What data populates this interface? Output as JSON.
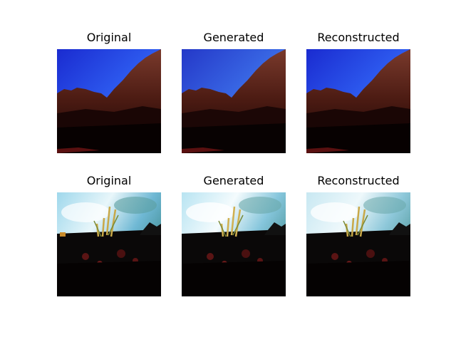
{
  "figure": {
    "rows": [
      {
        "panels": [
          {
            "title": "Original",
            "image": "mountain-rocks-blue-sky"
          },
          {
            "title": "Generated",
            "image": "mountain-rocks-blue-sky"
          },
          {
            "title": "Reconstructed",
            "image": "mountain-rocks-blue-sky"
          }
        ]
      },
      {
        "panels": [
          {
            "title": "Original",
            "image": "grass-field-cloudy-sky"
          },
          {
            "title": "Generated",
            "image": "grass-field-cloudy-sky"
          },
          {
            "title": "Reconstructed",
            "image": "grass-field-cloudy-sky"
          }
        ]
      }
    ]
  }
}
